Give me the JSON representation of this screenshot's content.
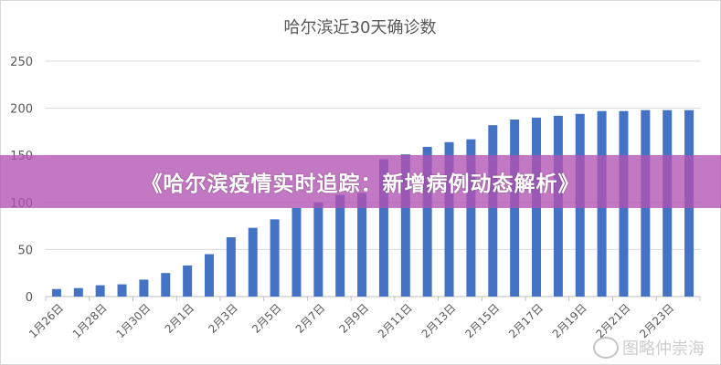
{
  "chart_data": {
    "type": "bar",
    "title": "哈尔滨近30天确诊数",
    "xlabel": "",
    "ylabel": "",
    "ylim": [
      0,
      250
    ],
    "yticks": [
      0,
      50,
      100,
      150,
      200,
      250
    ],
    "grid": true,
    "categories": [
      "1月26日",
      "1月27日",
      "1月28日",
      "1月29日",
      "1月30日",
      "1月31日",
      "2月1日",
      "2月2日",
      "2月3日",
      "2月4日",
      "2月5日",
      "2月6日",
      "2月7日",
      "2月8日",
      "2月9日",
      "2月10日",
      "2月11日",
      "2月12日",
      "2月13日",
      "2月14日",
      "2月15日",
      "2月16日",
      "2月17日",
      "2月18日",
      "2月19日",
      "2月20日",
      "2月21日",
      "2月22日",
      "2月23日",
      "2月24日"
    ],
    "tick_labels": [
      "1月26日",
      "1月28日",
      "1月30日",
      "2月1日",
      "2月3日",
      "2月5日",
      "2月7日",
      "2月9日",
      "2月11日",
      "2月13日",
      "2月15日",
      "2月17日",
      "2月19日",
      "2月21日",
      "2月23日"
    ],
    "values": [
      8,
      9,
      12,
      13,
      18,
      25,
      33,
      45,
      63,
      73,
      82,
      94,
      100,
      108,
      110,
      146,
      151,
      159,
      164,
      167,
      182,
      188,
      190,
      192,
      194,
      197,
      197,
      198,
      198,
      198
    ],
    "bar_color": "#4472C4"
  },
  "banner": {
    "text": "《哈尔滨疫情实时追踪：新增病例动态解析》",
    "color": "#B252B2"
  },
  "watermark": {
    "text": "图略仲崇海",
    "icon": "weibo-icon"
  }
}
